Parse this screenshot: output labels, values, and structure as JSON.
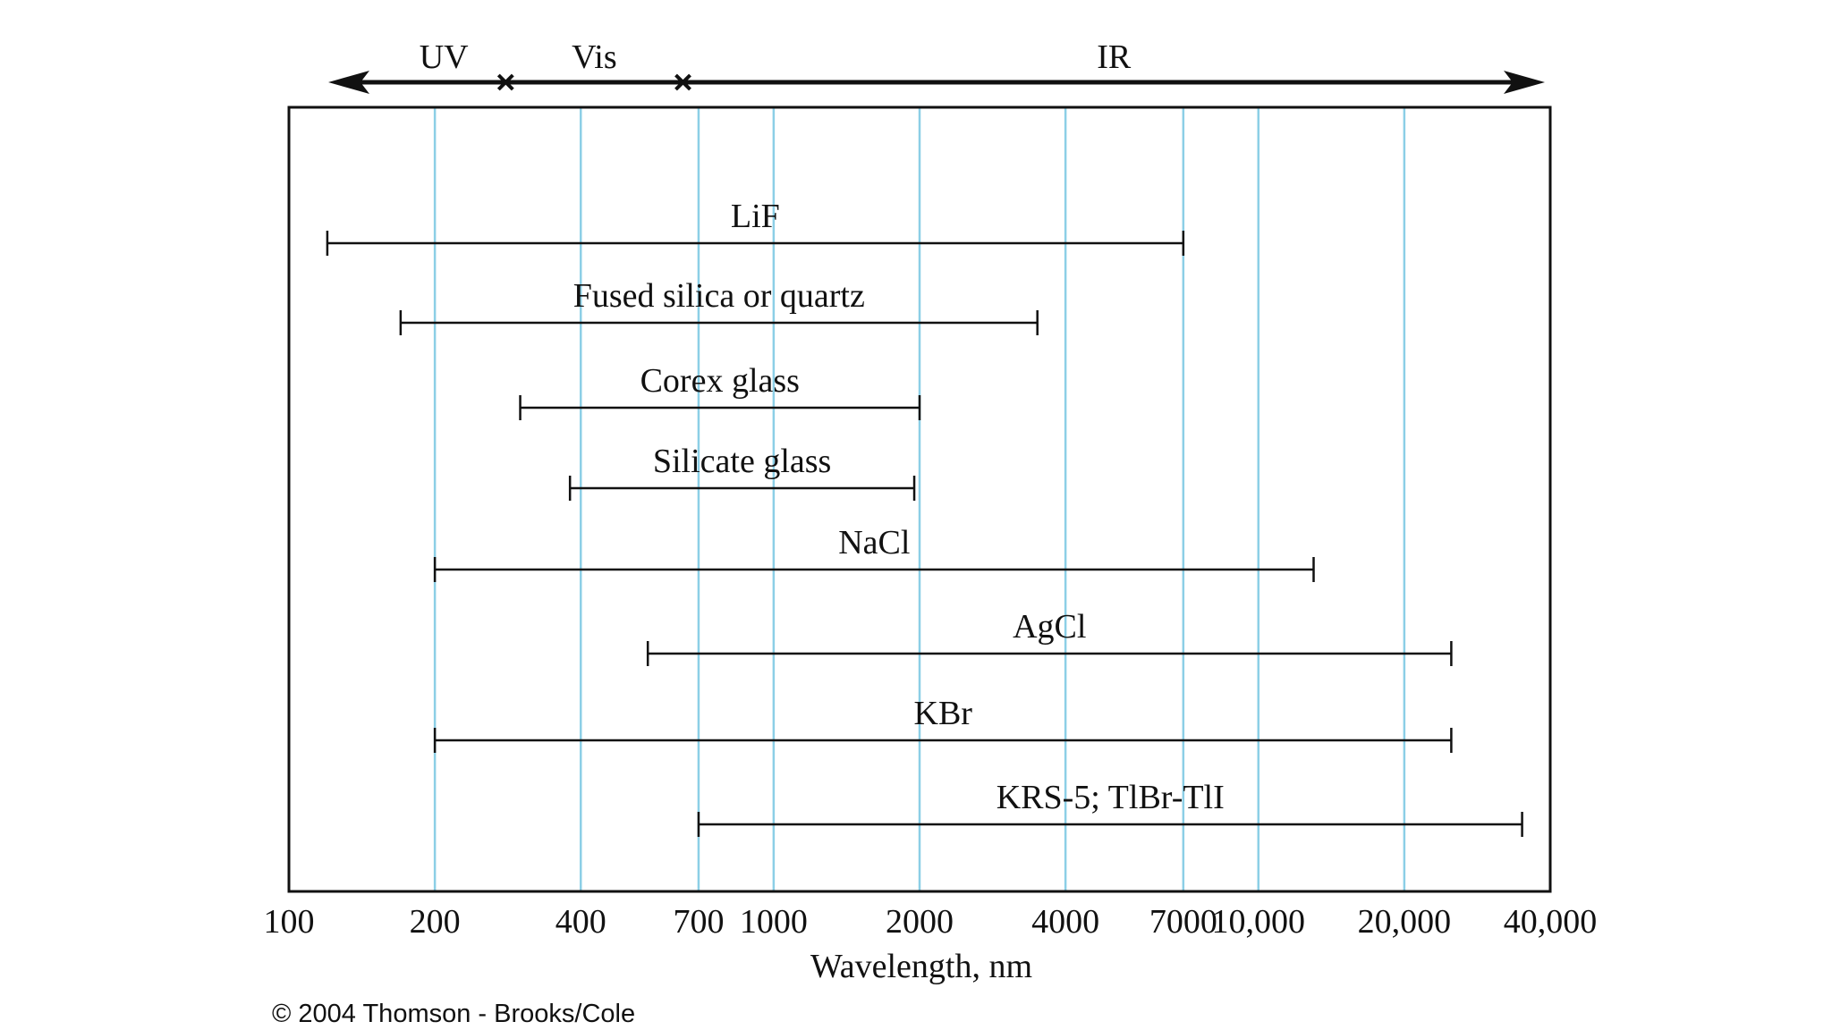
{
  "chart_data": {
    "type": "range",
    "title": "",
    "xlabel": "Wavelength, nm",
    "xscale": "log",
    "xlim": [
      100,
      40000
    ],
    "ticks": [
      100,
      200,
      400,
      700,
      1000,
      2000,
      4000,
      7000,
      10000,
      20000,
      40000
    ],
    "tick_labels": [
      "100",
      "200",
      "400",
      "700",
      "1000",
      "2000",
      "4000",
      "7000",
      "10,000",
      "20,000",
      "40,000"
    ],
    "gridlines": [
      200,
      400,
      700,
      1000,
      2000,
      4000,
      7000,
      10000,
      20000
    ],
    "grid_color": "#8ccfe6",
    "regions": [
      {
        "name": "UV",
        "from": 100,
        "to": 280
      },
      {
        "name": "Vis",
        "from": 280,
        "to": 650
      },
      {
        "name": "IR",
        "from": 650,
        "to": 40000
      }
    ],
    "materials": [
      {
        "name": "LiF",
        "min": 120,
        "max": 7000
      },
      {
        "name": "Fused silica or quartz",
        "min": 170,
        "max": 3500
      },
      {
        "name": "Corex glass",
        "min": 300,
        "max": 2000
      },
      {
        "name": "Silicate glass",
        "min": 380,
        "max": 1950
      },
      {
        "name": "NaCl",
        "min": 200,
        "max": 13000
      },
      {
        "name": "AgCl",
        "min": 550,
        "max": 25000
      },
      {
        "name": "KBr",
        "min": 200,
        "max": 25000
      },
      {
        "name": "KRS-5; TlBr-TlI",
        "min": 700,
        "max": 35000
      }
    ]
  },
  "credit": "© 2004 Thomson - Brooks/Cole"
}
